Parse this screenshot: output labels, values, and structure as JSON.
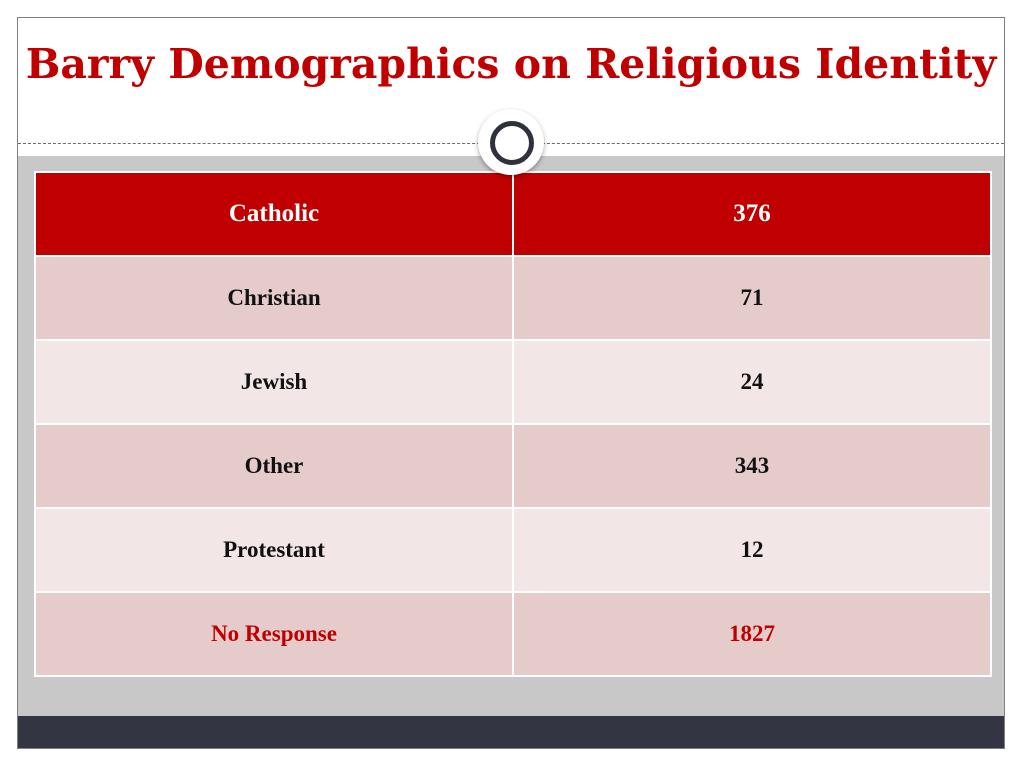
{
  "slide": {
    "title": "Barry Demographics on Religious Identity"
  },
  "table": {
    "header": {
      "label": "Catholic",
      "value": "376"
    },
    "rows": [
      {
        "label": "Christian",
        "value": "71"
      },
      {
        "label": "Jewish",
        "value": "24"
      },
      {
        "label": "Other",
        "value": "343"
      },
      {
        "label": "Protestant",
        "value": "12"
      },
      {
        "label": "No Response",
        "value": "1827"
      }
    ]
  },
  "colors": {
    "accent": "#c00000",
    "header_bg": "#c00000",
    "row_dark": "#e6cbcb",
    "row_light": "#f3e6e6",
    "content_bg": "#c8c8c8",
    "footer_bg": "#333642"
  }
}
